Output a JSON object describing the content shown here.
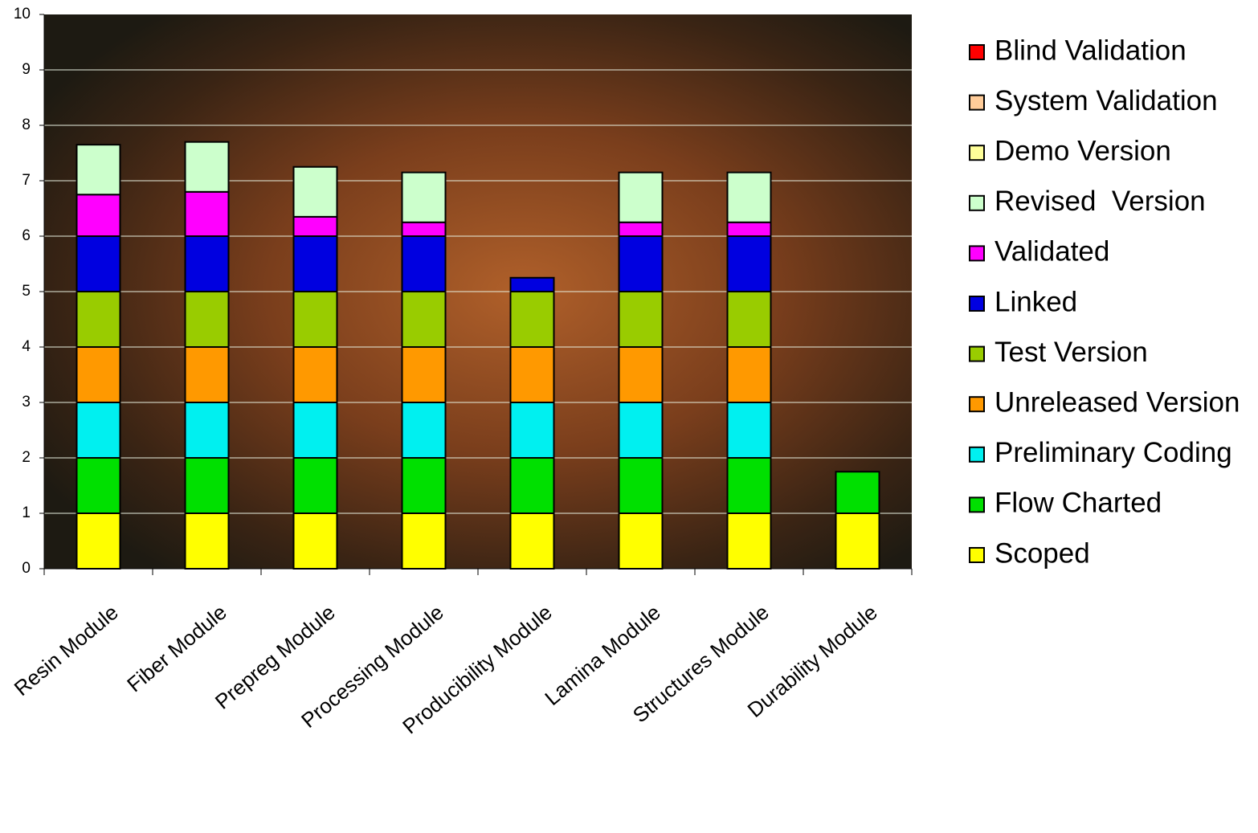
{
  "chart_data": {
    "type": "stacked_bar",
    "categories": [
      "Resin Module",
      "Fiber Module",
      "Prepreg Module",
      "Processing Module",
      "Producibility Module",
      "Lamina Module",
      "Structures Module",
      "Durability Module"
    ],
    "series": [
      {
        "name": "Scoped",
        "color": "#ffff00",
        "values": [
          1,
          1,
          1,
          1,
          1,
          1,
          1,
          1
        ]
      },
      {
        "name": "Flow Charted",
        "color": "#00e000",
        "values": [
          1,
          1,
          1,
          1,
          1,
          1,
          1,
          0.75
        ]
      },
      {
        "name": "Preliminary Coding",
        "color": "#00f0f0",
        "values": [
          1,
          1,
          1,
          1,
          1,
          1,
          1,
          0
        ]
      },
      {
        "name": "Unreleased Version",
        "color": "#ff9900",
        "values": [
          1,
          1,
          1,
          1,
          1,
          1,
          1,
          0
        ]
      },
      {
        "name": "Test Version",
        "color": "#99cc00",
        "values": [
          1,
          1,
          1,
          1,
          1,
          1,
          1,
          0
        ]
      },
      {
        "name": "Linked",
        "color": "#0000e0",
        "values": [
          1,
          1,
          1,
          1,
          0.25,
          1,
          1,
          0
        ]
      },
      {
        "name": "Validated",
        "color": "#ff00ff",
        "values": [
          0.75,
          0.8,
          0.35,
          0.25,
          0,
          0.25,
          0.25,
          0
        ]
      },
      {
        "name": "Revised  Version",
        "color": "#ccffcc",
        "values": [
          0.9,
          0.9,
          0.9,
          0.9,
          0,
          0.9,
          0.9,
          0
        ]
      },
      {
        "name": "Demo Version",
        "color": "#ffff99",
        "values": [
          0,
          0,
          0,
          0,
          0,
          0,
          0,
          0
        ]
      },
      {
        "name": "System Validation",
        "color": "#ffcc99",
        "values": [
          0,
          0,
          0,
          0,
          0,
          0,
          0,
          0
        ]
      },
      {
        "name": "Blind Validation",
        "color": "#ff0000",
        "values": [
          0,
          0,
          0,
          0,
          0,
          0,
          0,
          0
        ]
      }
    ],
    "ylim": [
      0,
      10
    ],
    "yticks": [
      0,
      1,
      2,
      3,
      4,
      5,
      6,
      7,
      8,
      9,
      10
    ],
    "grid": true,
    "legend": "right"
  }
}
